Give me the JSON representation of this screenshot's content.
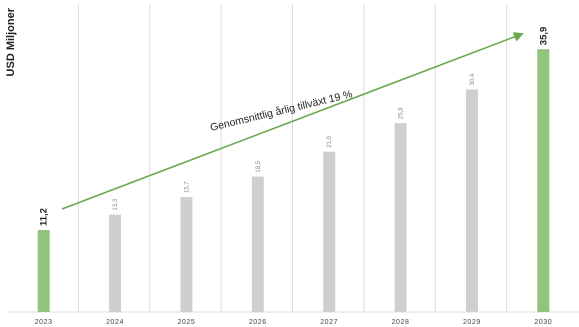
{
  "chart_data": {
    "type": "bar",
    "ylabel": "USD Miljoner",
    "categories": [
      "2023",
      "2024",
      "2025",
      "2026",
      "2027",
      "2028",
      "2029",
      "2030"
    ],
    "values": [
      11.2,
      13.3,
      15.7,
      18.5,
      21.9,
      25.8,
      30.4,
      35.9
    ],
    "value_labels": [
      "11,2",
      "13,3",
      "15,7",
      "18,5",
      "21,9",
      "25,8",
      "30,4",
      "35,9"
    ],
    "highlight_indices": [
      0,
      7
    ],
    "annotation": "Genomsnittlig årlig tillväxt 19 %",
    "grid": true,
    "colors": {
      "highlight": "#93c47d",
      "bar": "#cfcfcf",
      "arrow": "#6aa84f",
      "grid": "#dcdcdc",
      "text": "#222222",
      "muted_text": "#8a8a8a"
    }
  }
}
